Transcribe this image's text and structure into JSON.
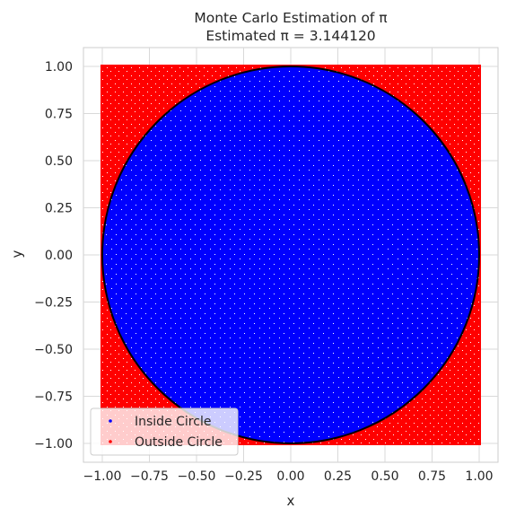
{
  "chart_data": {
    "type": "scatter",
    "title": "Monte Carlo Estimation of π",
    "subtitle": "Estimated π = 3.144120",
    "xlabel": "x",
    "ylabel": "y",
    "xlim": [
      -1.1,
      1.1
    ],
    "ylim": [
      -1.1,
      1.1
    ],
    "xticks": [
      -1.0,
      -0.75,
      -0.5,
      -0.25,
      0.0,
      0.25,
      0.5,
      0.75,
      1.0
    ],
    "yticks": [
      -1.0,
      -0.75,
      -0.5,
      -0.25,
      0.0,
      0.25,
      0.5,
      0.75,
      1.0
    ],
    "xtick_labels": [
      "−1.00",
      "−0.75",
      "−0.50",
      "−0.25",
      "0.00",
      "0.25",
      "0.50",
      "0.75",
      "1.00"
    ],
    "ytick_labels": [
      "−1.00",
      "−0.75",
      "−0.50",
      "−0.25",
      "0.00",
      "0.25",
      "0.50",
      "0.75",
      "1.00"
    ],
    "grid": true,
    "legend_position": "lower-left",
    "series": [
      {
        "name": "Inside Circle",
        "color": "#0000ff",
        "region": "x^2 + y^2 <= 1",
        "x_range": [
          -1,
          1
        ],
        "y_range": [
          -1,
          1
        ]
      },
      {
        "name": "Outside Circle",
        "color": "#ff0000",
        "region": "x^2 + y^2 > 1",
        "x_range": [
          -1,
          1
        ],
        "y_range": [
          -1,
          1
        ]
      }
    ],
    "circle": {
      "center": [
        0,
        0
      ],
      "radius": 1,
      "color": "#000000"
    },
    "estimated_pi": 3.14412
  }
}
